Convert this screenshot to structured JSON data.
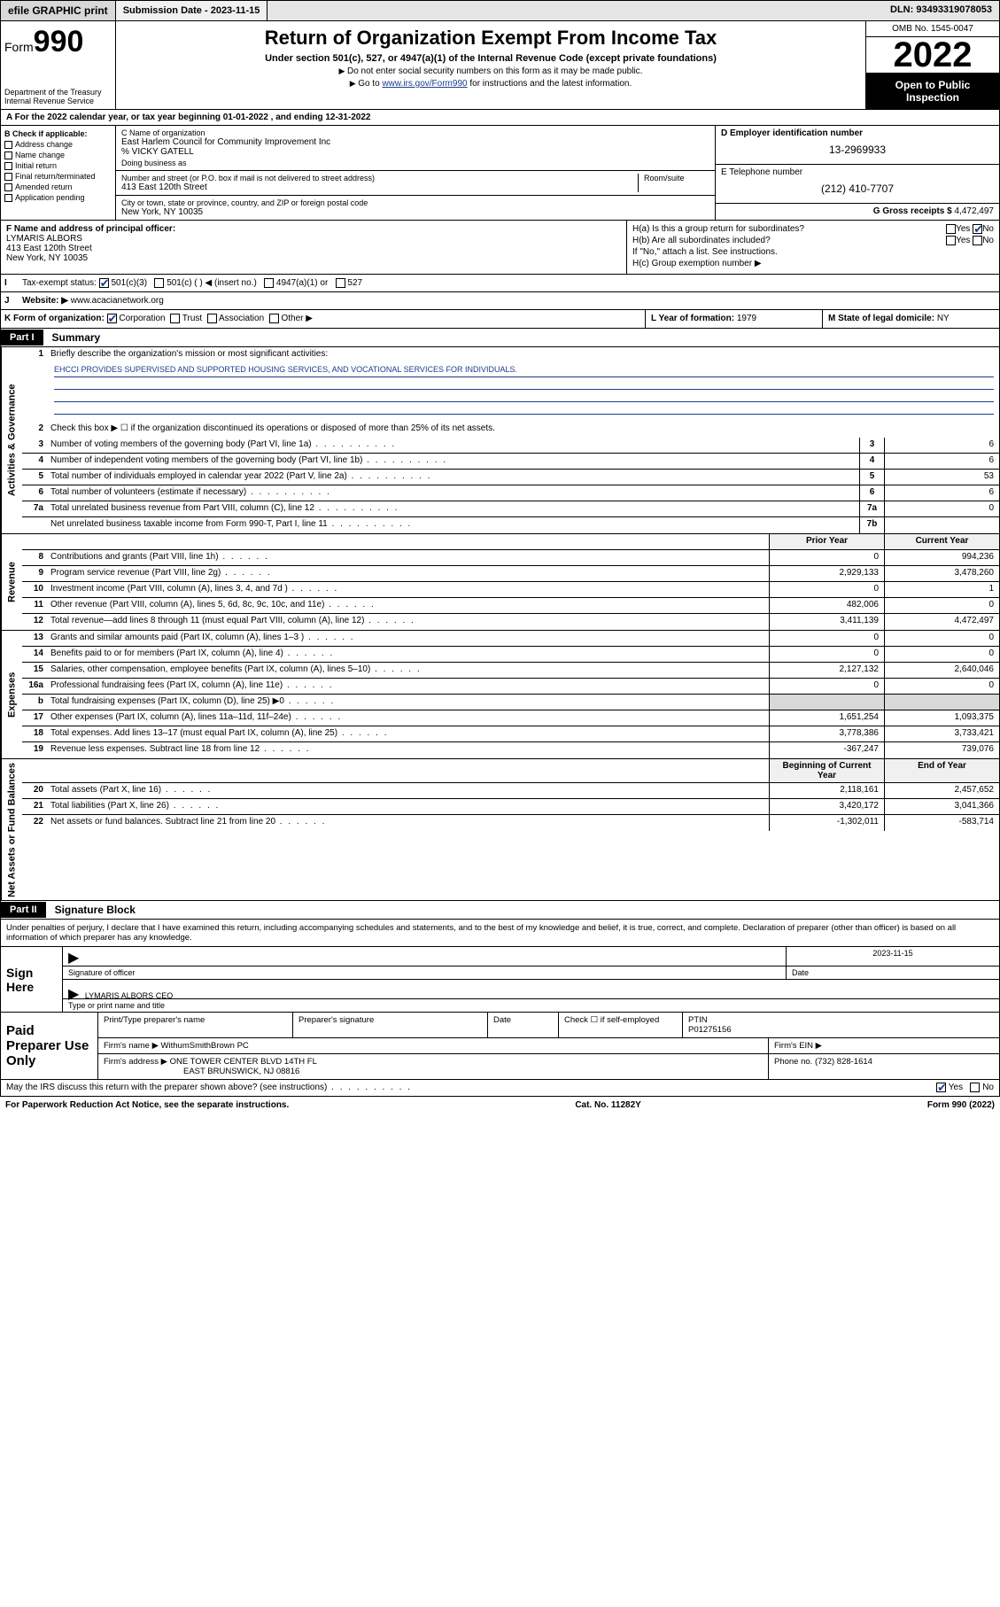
{
  "topbar": {
    "efile": "efile GRAPHIC print",
    "submission": "Submission Date - 2023-11-15",
    "dln": "DLN: 93493319078053"
  },
  "header": {
    "form_word": "Form",
    "form_number": "990",
    "dept": "Department of the Treasury\nInternal Revenue Service",
    "title": "Return of Organization Exempt From Income Tax",
    "sub": "Under section 501(c), 527, or 4947(a)(1) of the Internal Revenue Code (except private foundations)",
    "note1": "Do not enter social security numbers on this form as it may be made public.",
    "note2_prefix": "Go to ",
    "note2_link": "www.irs.gov/Form990",
    "note2_suffix": " for instructions and the latest information.",
    "omb": "OMB No. 1545-0047",
    "year": "2022",
    "inspect": "Open to Public Inspection"
  },
  "rowA": {
    "prefix": "A For the 2022 calendar year, or tax year beginning ",
    "begin": "01-01-2022",
    "mid": " , and ending ",
    "end": "12-31-2022"
  },
  "boxB": {
    "label": "B Check if applicable:",
    "opts": [
      "Address change",
      "Name change",
      "Initial return",
      "Final return/terminated",
      "Amended return",
      "Application pending"
    ]
  },
  "boxC": {
    "name_label": "C Name of organization",
    "name": "East Harlem Council for Community Improvement Inc",
    "care_of": "% VICKY GATELL",
    "dba_label": "Doing business as",
    "addr_label": "Number and street (or P.O. box if mail is not delivered to street address)",
    "suite_label": "Room/suite",
    "addr": "413 East 120th Street",
    "city_label": "City or town, state or province, country, and ZIP or foreign postal code",
    "city": "New York, NY  10035"
  },
  "boxD": {
    "label": "D Employer identification number",
    "value": "13-2969933"
  },
  "boxE": {
    "label": "E Telephone number",
    "value": "(212) 410-7707"
  },
  "boxG": {
    "label": "G Gross receipts $",
    "value": "4,472,497"
  },
  "boxF": {
    "label": "F Name and address of principal officer:",
    "name": "LYMARIS ALBORS",
    "addr1": "413 East 120th Street",
    "addr2": "New York, NY  10035"
  },
  "boxH": {
    "a_label": "H(a)  Is this a group return for subordinates?",
    "b_label": "H(b)  Are all subordinates included?",
    "b_note": "If \"No,\" attach a list. See instructions.",
    "c_label": "H(c)  Group exemption number ▶",
    "yes": "Yes",
    "no": "No"
  },
  "rowI": {
    "label": "Tax-exempt status:",
    "opts": [
      "501(c)(3)",
      "501(c) (  ) ◀ (insert no.)",
      "4947(a)(1) or",
      "527"
    ]
  },
  "rowJ": {
    "label": "Website: ▶",
    "value": "www.acacianetwork.org"
  },
  "rowK": {
    "label": "K Form of organization:",
    "opts": [
      "Corporation",
      "Trust",
      "Association",
      "Other ▶"
    ]
  },
  "rowL": {
    "label": "L Year of formation:",
    "value": "1979"
  },
  "rowM": {
    "label": "M State of legal domicile:",
    "value": "NY"
  },
  "part1": {
    "tag": "Part I",
    "title": "Summary"
  },
  "summary": {
    "vtabs": [
      "Activities & Governance",
      "Revenue",
      "Expenses",
      "Net Assets or Fund Balances"
    ],
    "line1_label": "Briefly describe the organization's mission or most significant activities:",
    "line1_text": "EHCCI PROVIDES SUPERVISED AND SUPPORTED HOUSING SERVICES, AND VOCATIONAL SERVICES FOR INDIVIDUALS.",
    "line2": "Check this box ▶ ☐  if the organization discontinued its operations or disposed of more than 25% of its net assets.",
    "gov_lines": [
      {
        "n": "3",
        "desc": "Number of voting members of the governing body (Part VI, line 1a)",
        "box": "3",
        "val": "6"
      },
      {
        "n": "4",
        "desc": "Number of independent voting members of the governing body (Part VI, line 1b)",
        "box": "4",
        "val": "6"
      },
      {
        "n": "5",
        "desc": "Total number of individuals employed in calendar year 2022 (Part V, line 2a)",
        "box": "5",
        "val": "53"
      },
      {
        "n": "6",
        "desc": "Total number of volunteers (estimate if necessary)",
        "box": "6",
        "val": "6"
      },
      {
        "n": "7a",
        "desc": "Total unrelated business revenue from Part VIII, column (C), line 12",
        "box": "7a",
        "val": "0"
      },
      {
        "n": "",
        "desc": "Net unrelated business taxable income from Form 990-T, Part I, line 11",
        "box": "7b",
        "val": ""
      }
    ],
    "col_prior": "Prior Year",
    "col_current": "Current Year",
    "rev_lines": [
      {
        "n": "8",
        "desc": "Contributions and grants (Part VIII, line 1h)",
        "prior": "0",
        "cur": "994,236"
      },
      {
        "n": "9",
        "desc": "Program service revenue (Part VIII, line 2g)",
        "prior": "2,929,133",
        "cur": "3,478,260"
      },
      {
        "n": "10",
        "desc": "Investment income (Part VIII, column (A), lines 3, 4, and 7d )",
        "prior": "0",
        "cur": "1"
      },
      {
        "n": "11",
        "desc": "Other revenue (Part VIII, column (A), lines 5, 6d, 8c, 9c, 10c, and 11e)",
        "prior": "482,006",
        "cur": "0"
      },
      {
        "n": "12",
        "desc": "Total revenue—add lines 8 through 11 (must equal Part VIII, column (A), line 12)",
        "prior": "3,411,139",
        "cur": "4,472,497"
      }
    ],
    "exp_lines": [
      {
        "n": "13",
        "desc": "Grants and similar amounts paid (Part IX, column (A), lines 1–3 )",
        "prior": "0",
        "cur": "0"
      },
      {
        "n": "14",
        "desc": "Benefits paid to or for members (Part IX, column (A), line 4)",
        "prior": "0",
        "cur": "0"
      },
      {
        "n": "15",
        "desc": "Salaries, other compensation, employee benefits (Part IX, column (A), lines 5–10)",
        "prior": "2,127,132",
        "cur": "2,640,046"
      },
      {
        "n": "16a",
        "desc": "Professional fundraising fees (Part IX, column (A), line 11e)",
        "prior": "0",
        "cur": "0"
      },
      {
        "n": "b",
        "desc": "Total fundraising expenses (Part IX, column (D), line 25) ▶0",
        "prior": "shade",
        "cur": "shade"
      },
      {
        "n": "17",
        "desc": "Other expenses (Part IX, column (A), lines 11a–11d, 11f–24e)",
        "prior": "1,651,254",
        "cur": "1,093,375"
      },
      {
        "n": "18",
        "desc": "Total expenses. Add lines 13–17 (must equal Part IX, column (A), line 25)",
        "prior": "3,778,386",
        "cur": "3,733,421"
      },
      {
        "n": "19",
        "desc": "Revenue less expenses. Subtract line 18 from line 12",
        "prior": "-367,247",
        "cur": "739,076"
      }
    ],
    "col_begin": "Beginning of Current Year",
    "col_end": "End of Year",
    "net_lines": [
      {
        "n": "20",
        "desc": "Total assets (Part X, line 16)",
        "prior": "2,118,161",
        "cur": "2,457,652"
      },
      {
        "n": "21",
        "desc": "Total liabilities (Part X, line 26)",
        "prior": "3,420,172",
        "cur": "3,041,366"
      },
      {
        "n": "22",
        "desc": "Net assets or fund balances. Subtract line 21 from line 20",
        "prior": "-1,302,011",
        "cur": "-583,714"
      }
    ]
  },
  "part2": {
    "tag": "Part II",
    "title": "Signature Block"
  },
  "sig": {
    "declaration": "Under penalties of perjury, I declare that I have examined this return, including accompanying schedules and statements, and to the best of my knowledge and belief, it is true, correct, and complete. Declaration of preparer (other than officer) is based on all information of which preparer has any knowledge.",
    "sign_here": "Sign Here",
    "sig_officer": "Signature of officer",
    "date_label": "Date",
    "date": "2023-11-15",
    "officer_name": "LYMARIS ALBORS  CEO",
    "type_label": "Type or print name and title"
  },
  "prep": {
    "title": "Paid Preparer Use Only",
    "print_label": "Print/Type preparer's name",
    "sig_label": "Preparer's signature",
    "date_label": "Date",
    "check_label": "Check ☐ if self-employed",
    "ptin_label": "PTIN",
    "ptin": "P01275156",
    "firm_name_label": "Firm's name  ▶",
    "firm_name": "WithumSmithBrown PC",
    "firm_ein_label": "Firm's EIN ▶",
    "firm_addr_label": "Firm's address ▶",
    "firm_addr1": "ONE TOWER CENTER BLVD 14TH FL",
    "firm_addr2": "EAST BRUNSWICK, NJ  08816",
    "phone_label": "Phone no.",
    "phone": "(732) 828-1614"
  },
  "discuss": {
    "text": "May the IRS discuss this return with the preparer shown above? (see instructions)",
    "yes": "Yes",
    "no": "No"
  },
  "footer": {
    "left": "For Paperwork Reduction Act Notice, see the separate instructions.",
    "mid": "Cat. No. 11282Y",
    "right": "Form 990 (2022)"
  }
}
